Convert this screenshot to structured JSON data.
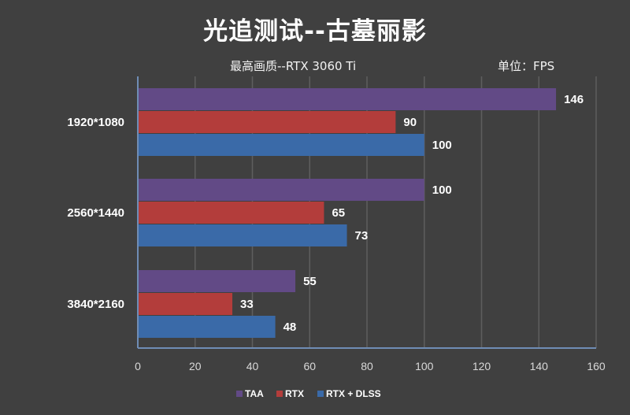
{
  "chart_data": {
    "type": "bar",
    "orientation": "horizontal",
    "title": "光追测试--古墓丽影",
    "subtitle": "最高画质--RTX 3060 Ti",
    "unit_label": "单位：FPS",
    "categories": [
      "1920*1080",
      "2560*1440",
      "3840*2160"
    ],
    "series": [
      {
        "name": "TAA",
        "color": "#624a86",
        "values": [
          146,
          100,
          55
        ]
      },
      {
        "name": "RTX",
        "color": "#b33d3b",
        "values": [
          90,
          65,
          33
        ]
      },
      {
        "name": "RTX + DLSS",
        "color": "#3a6aa8",
        "values": [
          100,
          73,
          48
        ]
      }
    ],
    "xlim": [
      0,
      160
    ],
    "xticks": [
      "0",
      "20",
      "40",
      "60",
      "80",
      "100",
      "120",
      "140",
      "160"
    ],
    "xlabel": "",
    "ylabel": "",
    "grid": true,
    "legend_position": "bottom"
  },
  "colors": {
    "background": "#404040",
    "gridline": "#5e5e5e",
    "axis": "#6f8db5"
  }
}
